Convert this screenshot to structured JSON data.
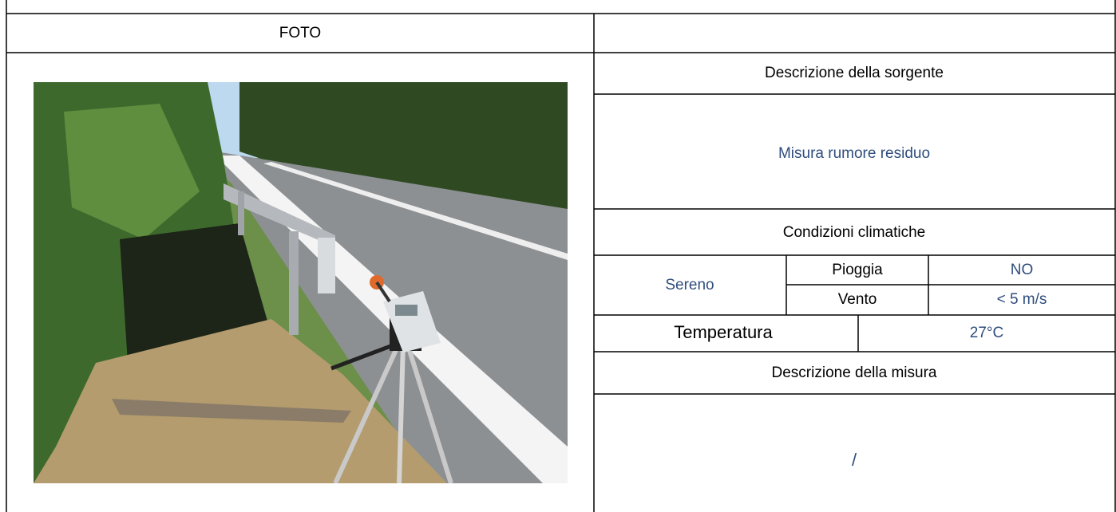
{
  "table": {
    "header": {
      "left": "FOTO"
    },
    "source_label": "Descrizione della sorgente",
    "source_value": "Misura rumore residuo",
    "climate_label": "Condizioni climatiche",
    "sky": "Sereno",
    "rain_label": "Pioggia",
    "rain_value": "NO",
    "wind_label": "Vento",
    "wind_value": "< 5 m/s",
    "temperature_label": "Temperatura",
    "temperature_value": "27°C",
    "measure_label": "Descrizione della misura",
    "measure_value": "/"
  }
}
